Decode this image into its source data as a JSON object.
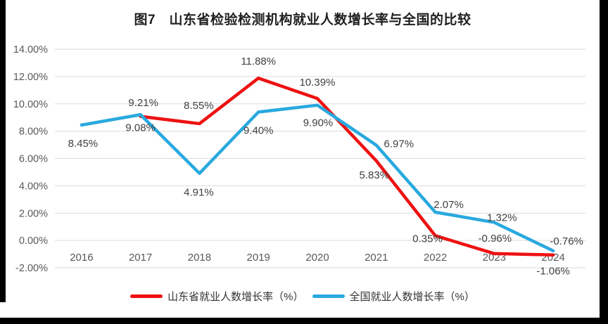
{
  "title": "图7　山东省检验检测机构就业人数增长率与全国的比较",
  "colors": {
    "shandong_line": "#EE1111",
    "national_line": "#29A9DF",
    "gridline": "#DADADA",
    "axis_text": "#595959",
    "data_label_text": "#404040",
    "frame": "#000000",
    "background": "#FFFFFF"
  },
  "chart_data": {
    "type": "line",
    "title": "图7　山东省检验检测机构就业人数增长率与全国的比较",
    "categories": [
      "2016",
      "2017",
      "2018",
      "2019",
      "2020",
      "2021",
      "2022",
      "2023",
      "2024"
    ],
    "series": [
      {
        "name": "山东省就业人数增长率（%）",
        "color": "#EE1111",
        "values": [
          null,
          9.08,
          8.55,
          11.88,
          10.39,
          5.83,
          0.35,
          -0.96,
          -1.06
        ]
      },
      {
        "name": "全国就业人数增长率（%）",
        "color": "#29A9DF",
        "values": [
          8.45,
          9.21,
          4.91,
          9.4,
          9.9,
          6.97,
          2.07,
          1.32,
          -0.76
        ]
      }
    ],
    "yticks": [
      "14.00%",
      "12.00%",
      "10.00%",
      "8.00%",
      "6.00%",
      "4.00%",
      "2.00%",
      "0.00%",
      "-2.00%"
    ],
    "ylim": [
      -2,
      14
    ],
    "ytick_step": 2,
    "xlabel": "",
    "ylabel": "",
    "grid": true,
    "legend_position": "bottom",
    "data_labels": true,
    "data_label_format": "0.00%"
  }
}
